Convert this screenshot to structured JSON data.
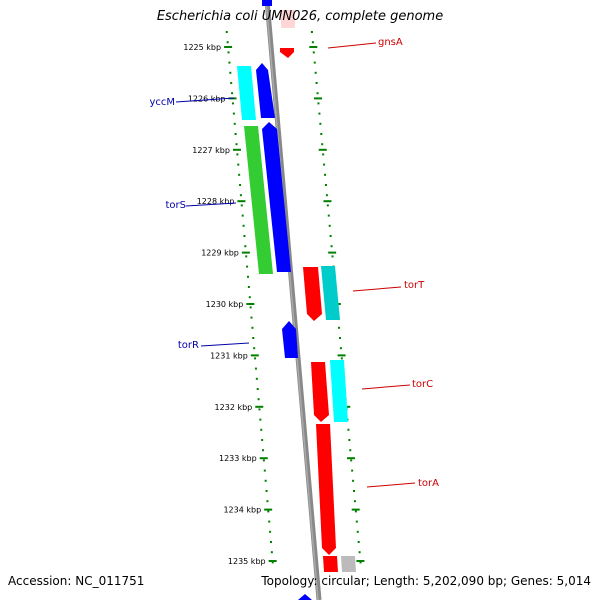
{
  "title": "Escherichia coli UMN026, complete genome",
  "accession_text": "Accession: NC_011751",
  "summary_text": "Topology: circular; Length: 5,202,090 bp; Genes: 5,014",
  "ticks": [
    "1225 kbp",
    "1226 kbp",
    "1227 kbp",
    "1228 kbp",
    "1229 kbp",
    "1230 kbp",
    "1231 kbp",
    "1232 kbp",
    "1233 kbp",
    "1234 kbp",
    "1235 kbp"
  ],
  "gene_labels": {
    "left": [
      "yccM",
      "torS",
      "torR"
    ],
    "right": [
      "gnsA",
      "torT",
      "torC",
      "torA"
    ]
  },
  "colors": {
    "label_blue": "#0000aa",
    "label_red": "#cc0000",
    "tick_green": "#008000",
    "backbone": "#888888",
    "gene_blue": "#0000ff",
    "gene_cyan": "#00ffff",
    "gene_green": "#33cc33",
    "gene_red": "#ff0000",
    "gene_teal": "#00cccc",
    "gene_gray": "#bbbbbb"
  }
}
